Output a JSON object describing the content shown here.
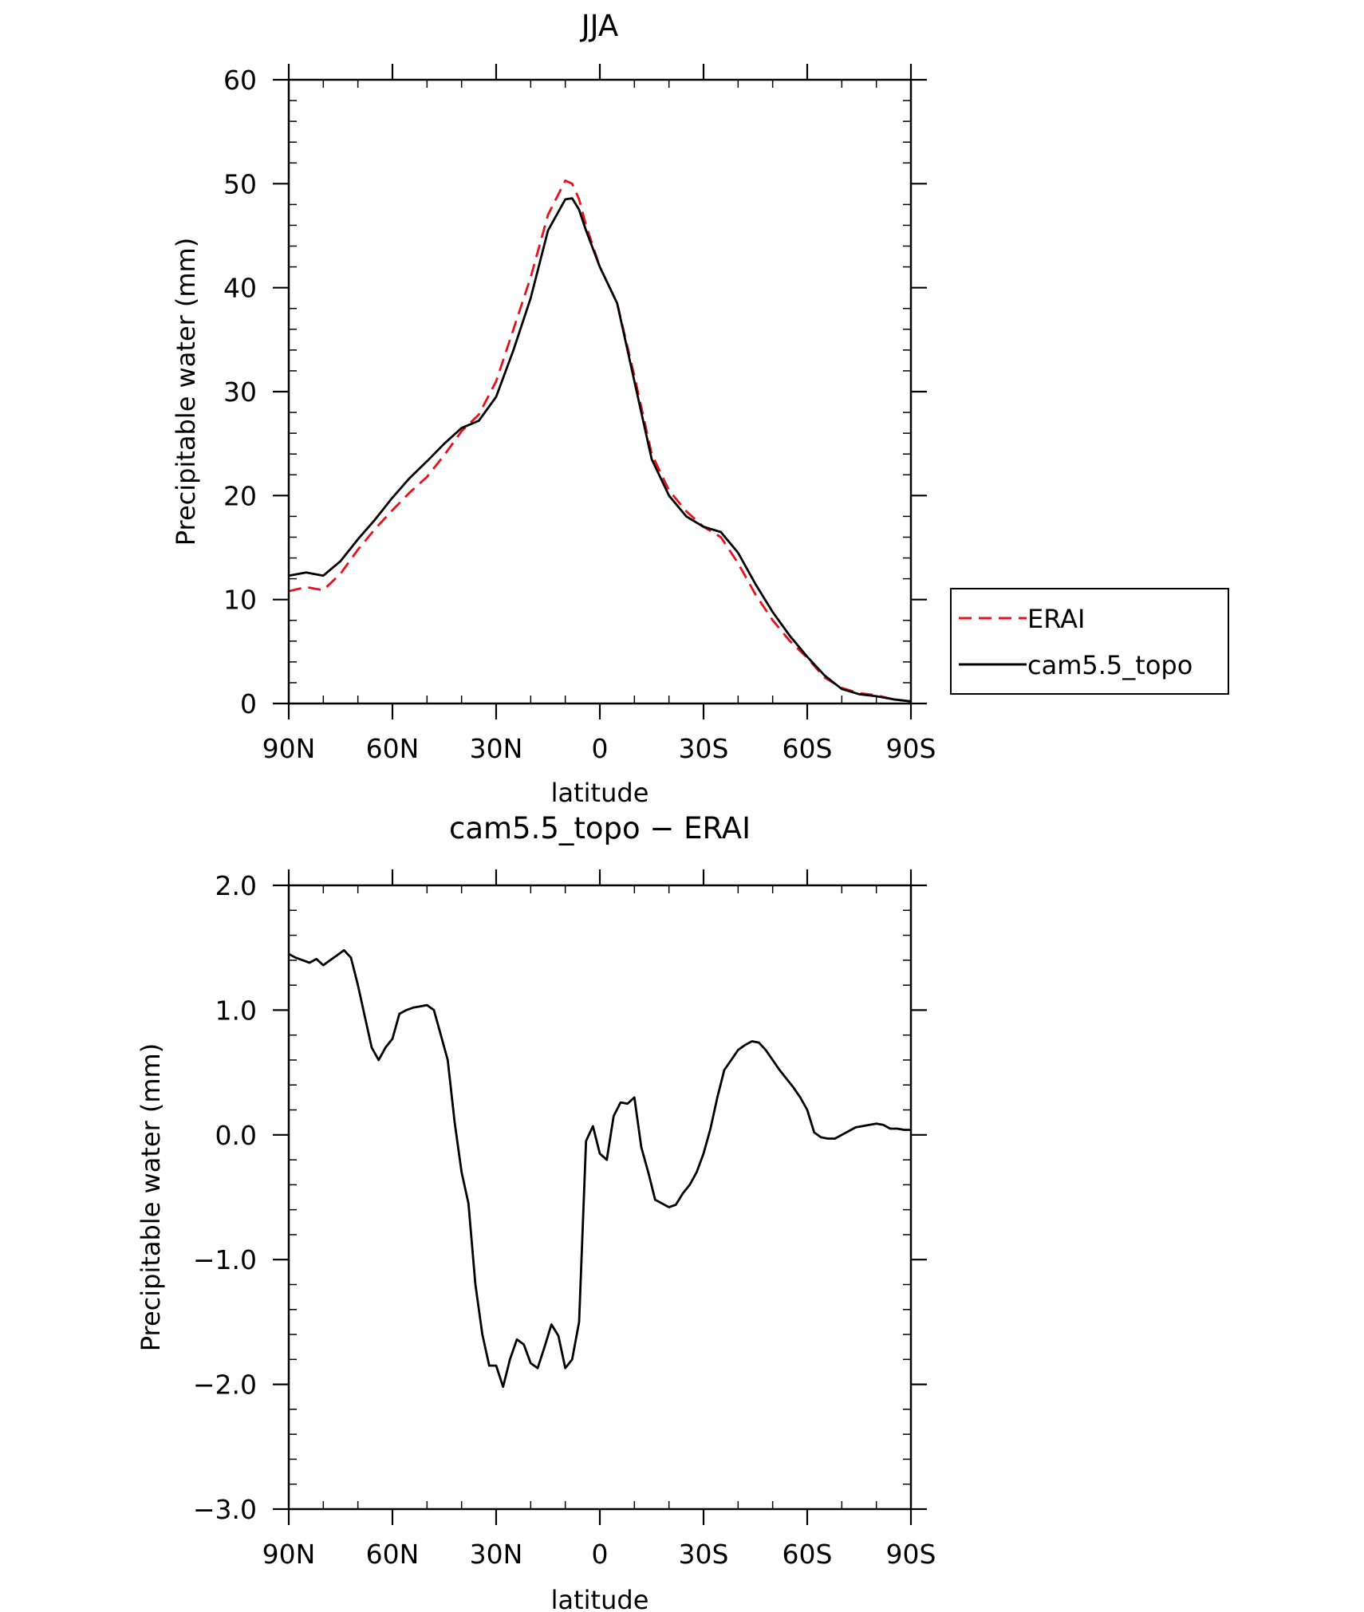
{
  "chart_data": [
    {
      "type": "line",
      "title": "JJA",
      "xlabel": "latitude",
      "ylabel": "Precipitable water (mm)",
      "xlim": [
        90,
        -90
      ],
      "ylim": [
        0,
        60
      ],
      "xticks": [
        90,
        60,
        30,
        0,
        -30,
        -60,
        -90
      ],
      "xticklabels": [
        "90N",
        "60N",
        "30N",
        "0",
        "30S",
        "60S",
        "90S"
      ],
      "yticks": [
        0,
        10,
        20,
        30,
        40,
        50,
        60
      ],
      "yticklabels": [
        "0",
        "10",
        "20",
        "30",
        "40",
        "50",
        "60"
      ],
      "grid": false,
      "legend": "right",
      "series": [
        {
          "name": "ERAI",
          "color": "#e8101a",
          "dash": "dashed",
          "x": [
            90,
            85,
            80,
            75,
            70,
            65,
            60,
            55,
            50,
            45,
            40,
            35,
            30,
            25,
            20,
            15,
            10,
            8,
            6,
            4,
            0,
            -5,
            -10,
            -15,
            -20,
            -25,
            -30,
            -35,
            -40,
            -45,
            -50,
            -55,
            -60,
            -65,
            -70,
            -75,
            -80,
            -85,
            -90
          ],
          "values": [
            10.8,
            11.2,
            10.9,
            12.5,
            14.8,
            16.8,
            18.6,
            20.3,
            21.8,
            23.9,
            26.2,
            27.8,
            31.0,
            36.0,
            41.0,
            47.0,
            50.3,
            50.0,
            48.5,
            46.0,
            42.0,
            38.5,
            31.5,
            24.0,
            20.5,
            18.5,
            17.0,
            16.0,
            13.5,
            10.5,
            8.0,
            6.0,
            4.4,
            2.5,
            1.5,
            1.0,
            0.8,
            0.4,
            0.2
          ]
        },
        {
          "name": "cam5.5_topo",
          "color": "#000000",
          "dash": "solid",
          "x": [
            90,
            85,
            80,
            75,
            70,
            65,
            60,
            55,
            50,
            45,
            40,
            35,
            30,
            25,
            20,
            15,
            10,
            8,
            6,
            4,
            0,
            -5,
            -10,
            -15,
            -20,
            -25,
            -30,
            -35,
            -40,
            -45,
            -50,
            -55,
            -60,
            -65,
            -70,
            -75,
            -80,
            -85,
            -90
          ],
          "values": [
            12.3,
            12.6,
            12.3,
            13.7,
            15.8,
            17.7,
            19.8,
            21.7,
            23.3,
            25.0,
            26.5,
            27.2,
            29.5,
            34.0,
            39.0,
            45.5,
            48.5,
            48.6,
            47.5,
            45.5,
            42.0,
            38.5,
            31.0,
            23.5,
            20.0,
            18.0,
            17.0,
            16.5,
            14.5,
            11.5,
            8.8,
            6.5,
            4.5,
            2.7,
            1.4,
            0.9,
            0.7,
            0.4,
            0.2
          ]
        }
      ]
    },
    {
      "type": "line",
      "title": "cam5.5_topo − ERAI",
      "xlabel": "latitude",
      "ylabel": "Precipitable water (mm)",
      "xlim": [
        90,
        -90
      ],
      "ylim": [
        -3.0,
        2.0
      ],
      "xticks": [
        90,
        60,
        30,
        0,
        -30,
        -60,
        -90
      ],
      "xticklabels": [
        "90N",
        "60N",
        "30N",
        "0",
        "30S",
        "60S",
        "90S"
      ],
      "yticks": [
        -3.0,
        -2.0,
        -1.0,
        0.0,
        1.0,
        2.0
      ],
      "yticklabels": [
        "−3.0",
        "−2.0",
        "−1.0",
        "0.0",
        "1.0",
        "2.0"
      ],
      "grid": false,
      "series": [
        {
          "color": "#000000",
          "dash": "solid",
          "x": [
            90,
            88,
            86,
            84,
            82,
            80,
            78,
            76,
            74,
            72,
            70,
            68,
            66,
            64,
            62,
            60,
            58,
            56,
            54,
            52,
            50,
            48,
            46,
            44,
            42,
            40,
            38,
            36,
            34,
            32,
            30,
            28,
            26,
            24,
            22,
            20,
            18,
            16,
            14,
            12,
            10,
            8,
            6,
            4,
            2,
            0,
            -2,
            -4,
            -6,
            -8,
            -10,
            -12,
            -14,
            -16,
            -18,
            -20,
            -22,
            -24,
            -26,
            -28,
            -30,
            -32,
            -34,
            -36,
            -38,
            -40,
            -42,
            -44,
            -46,
            -48,
            -50,
            -52,
            -54,
            -56,
            -58,
            -60,
            -62,
            -64,
            -66,
            -68,
            -70,
            -72,
            -74,
            -76,
            -78,
            -80,
            -82,
            -84,
            -86,
            -88,
            -90
          ],
          "values": [
            1.45,
            1.42,
            1.4,
            1.38,
            1.41,
            1.36,
            1.4,
            1.44,
            1.48,
            1.42,
            1.2,
            0.95,
            0.7,
            0.6,
            0.7,
            0.77,
            0.97,
            1.0,
            1.02,
            1.03,
            1.04,
            1.0,
            0.8,
            0.6,
            0.1,
            -0.3,
            -0.55,
            -1.2,
            -1.6,
            -1.85,
            -1.85,
            -2.02,
            -1.8,
            -1.64,
            -1.68,
            -1.83,
            -1.87,
            -1.7,
            -1.52,
            -1.61,
            -1.87,
            -1.8,
            -1.5,
            -0.05,
            0.07,
            -0.15,
            -0.2,
            0.15,
            0.26,
            0.25,
            0.3,
            -0.1,
            -0.3,
            -0.52,
            -0.55,
            -0.58,
            -0.56,
            -0.47,
            -0.4,
            -0.3,
            -0.15,
            0.05,
            0.3,
            0.52,
            0.6,
            0.68,
            0.72,
            0.75,
            0.74,
            0.68,
            0.6,
            0.52,
            0.45,
            0.38,
            0.3,
            0.2,
            0.02,
            -0.02,
            -0.03,
            -0.03,
            0.0,
            0.03,
            0.06,
            0.07,
            0.08,
            0.09,
            0.08,
            0.05,
            0.05,
            0.04,
            0.04
          ]
        }
      ]
    }
  ]
}
